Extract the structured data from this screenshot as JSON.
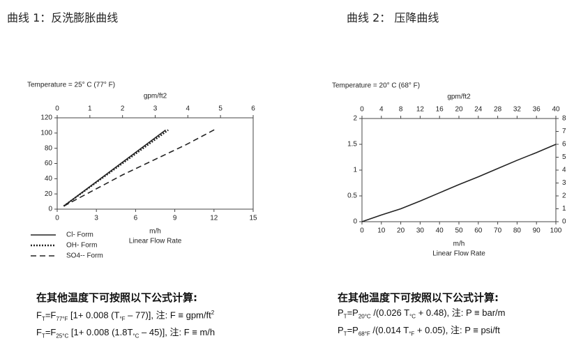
{
  "headings": [
    "曲线 1：反洗膨胀曲线",
    "曲线 2： 压降曲线"
  ],
  "chart_data": [
    {
      "type": "line",
      "subtitle": "Temperature = 25° C (77° F)",
      "x_unit": "m/h",
      "xlabel": "Linear Flow Rate",
      "x2label": "gpm/ft2",
      "xlim": [
        0,
        15
      ],
      "xticks": [
        0,
        3,
        6,
        9,
        12,
        15
      ],
      "x2lim": [
        0,
        6
      ],
      "x2ticks": [
        0,
        1,
        2,
        3,
        4,
        5,
        6
      ],
      "ylim": [
        0,
        120
      ],
      "yticks": [
        0,
        20,
        40,
        60,
        80,
        100,
        120
      ],
      "grid": false,
      "legend": "below-left",
      "series": [
        {
          "name": "Cl- Form",
          "color": "#222222",
          "style": "solid",
          "x": [
            0.5,
            8.3
          ],
          "values": [
            4,
            104
          ]
        },
        {
          "name": "OH- Form",
          "color": "#222222",
          "style": "dotted",
          "x": [
            0.5,
            8.5
          ],
          "values": [
            4,
            104
          ]
        },
        {
          "name": "SO4-- Form",
          "color": "#222222",
          "style": "dashed",
          "x": [
            0.5,
            5,
            9.9,
            12.1
          ],
          "values": [
            4,
            45,
            85,
            105
          ]
        }
      ]
    },
    {
      "type": "line",
      "subtitle": "Temperature = 20° C (68° F)",
      "x_unit": "m/h",
      "xlabel": "Linear Flow Rate",
      "x2label": "gpm/ft2",
      "xlim": [
        0,
        100
      ],
      "xticks": [
        0,
        10,
        20,
        30,
        40,
        50,
        60,
        70,
        80,
        90,
        100
      ],
      "x2lim": [
        0,
        40
      ],
      "x2ticks": [
        0,
        4,
        8,
        12,
        16,
        20,
        24,
        28,
        32,
        36,
        40
      ],
      "ylim": [
        0,
        2
      ],
      "yticks": [
        0,
        0.5,
        1,
        1.5,
        2
      ],
      "y2lim": [
        0,
        8
      ],
      "y2ticks": [
        0,
        1,
        2,
        3,
        4,
        5,
        6,
        7,
        8
      ],
      "grid": false,
      "color": "#222222",
      "style": "solid",
      "x": [
        0,
        10,
        20,
        30,
        40,
        50,
        60,
        70,
        80,
        90,
        100
      ],
      "values": [
        0,
        0.13,
        0.25,
        0.4,
        0.56,
        0.72,
        0.87,
        1.03,
        1.19,
        1.34,
        1.5
      ]
    }
  ],
  "formulas": [
    {
      "heading": "在其他温度下可按照以下公式计算:",
      "lines": [
        [
          {
            "text": "F"
          },
          {
            "sub": "T"
          },
          {
            "text": "=F"
          },
          {
            "sub": "77°F"
          },
          {
            "text": " [1+ 0.008 (T"
          },
          {
            "sub": "°F"
          },
          {
            "text": " – 77)], 注: F ≡ gpm/ft"
          },
          {
            "sup": "2"
          }
        ],
        [
          {
            "text": "F"
          },
          {
            "sub": "T"
          },
          {
            "text": "=F"
          },
          {
            "sub": "25°C"
          },
          {
            "text": " [1+ 0.008 (1.8T"
          },
          {
            "sub": "°C"
          },
          {
            "text": " – 45)], 注: F ≡ m/h"
          }
        ]
      ]
    },
    {
      "heading": "在其他温度下可按照以下公式计算:",
      "lines": [
        [
          {
            "text": "P"
          },
          {
            "sub": "T"
          },
          {
            "text": "=P"
          },
          {
            "sub": "20°C"
          },
          {
            "text": " /(0.026 T"
          },
          {
            "sub": "°C"
          },
          {
            "text": " + 0.48), 注: P ≡ bar/m"
          }
        ],
        [
          {
            "text": "P"
          },
          {
            "sub": "T"
          },
          {
            "text": "=P"
          },
          {
            "sub": "68°F"
          },
          {
            "text": " /(0.014 T"
          },
          {
            "sub": "°F"
          },
          {
            "text": " + 0.05), 注: P ≡ psi/ft"
          }
        ]
      ]
    }
  ]
}
